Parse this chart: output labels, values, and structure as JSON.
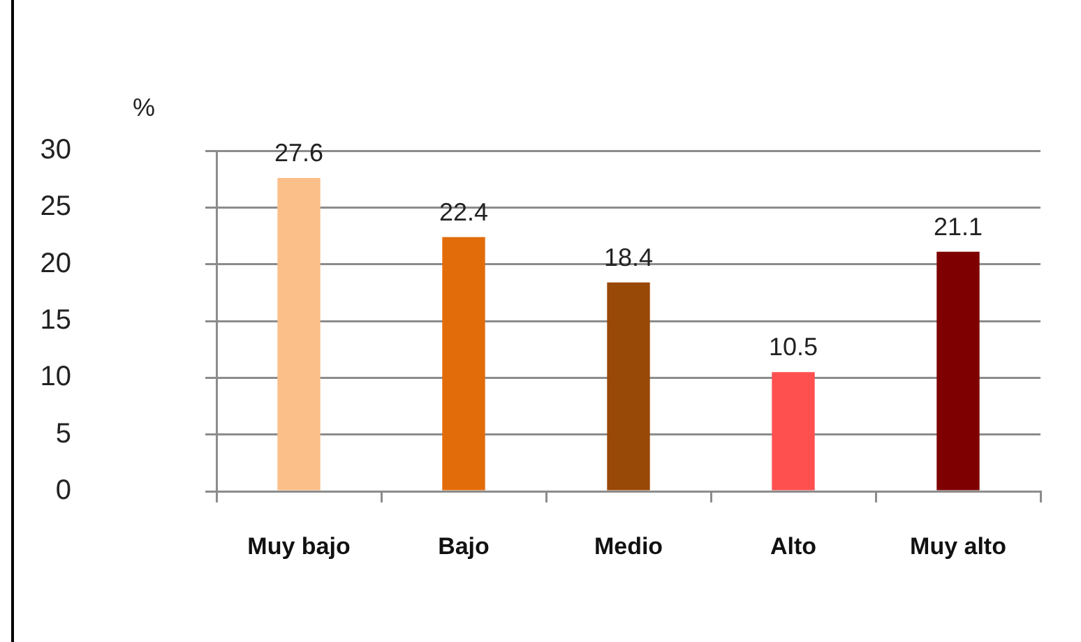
{
  "chart_data": {
    "type": "bar",
    "ylabel": "%",
    "categories": [
      "Muy bajo",
      "Bajo",
      "Medio",
      "Alto",
      "Muy alto"
    ],
    "values": [
      27.6,
      22.4,
      18.4,
      10.5,
      21.1
    ],
    "colors": [
      "#fbbf8a",
      "#e36c0a",
      "#984807",
      "#ff5050",
      "#7f0000"
    ],
    "ylim": [
      0,
      30
    ],
    "yticks": [
      0,
      5,
      10,
      15,
      20,
      25,
      30
    ],
    "grid": "y",
    "data_labels": true
  }
}
